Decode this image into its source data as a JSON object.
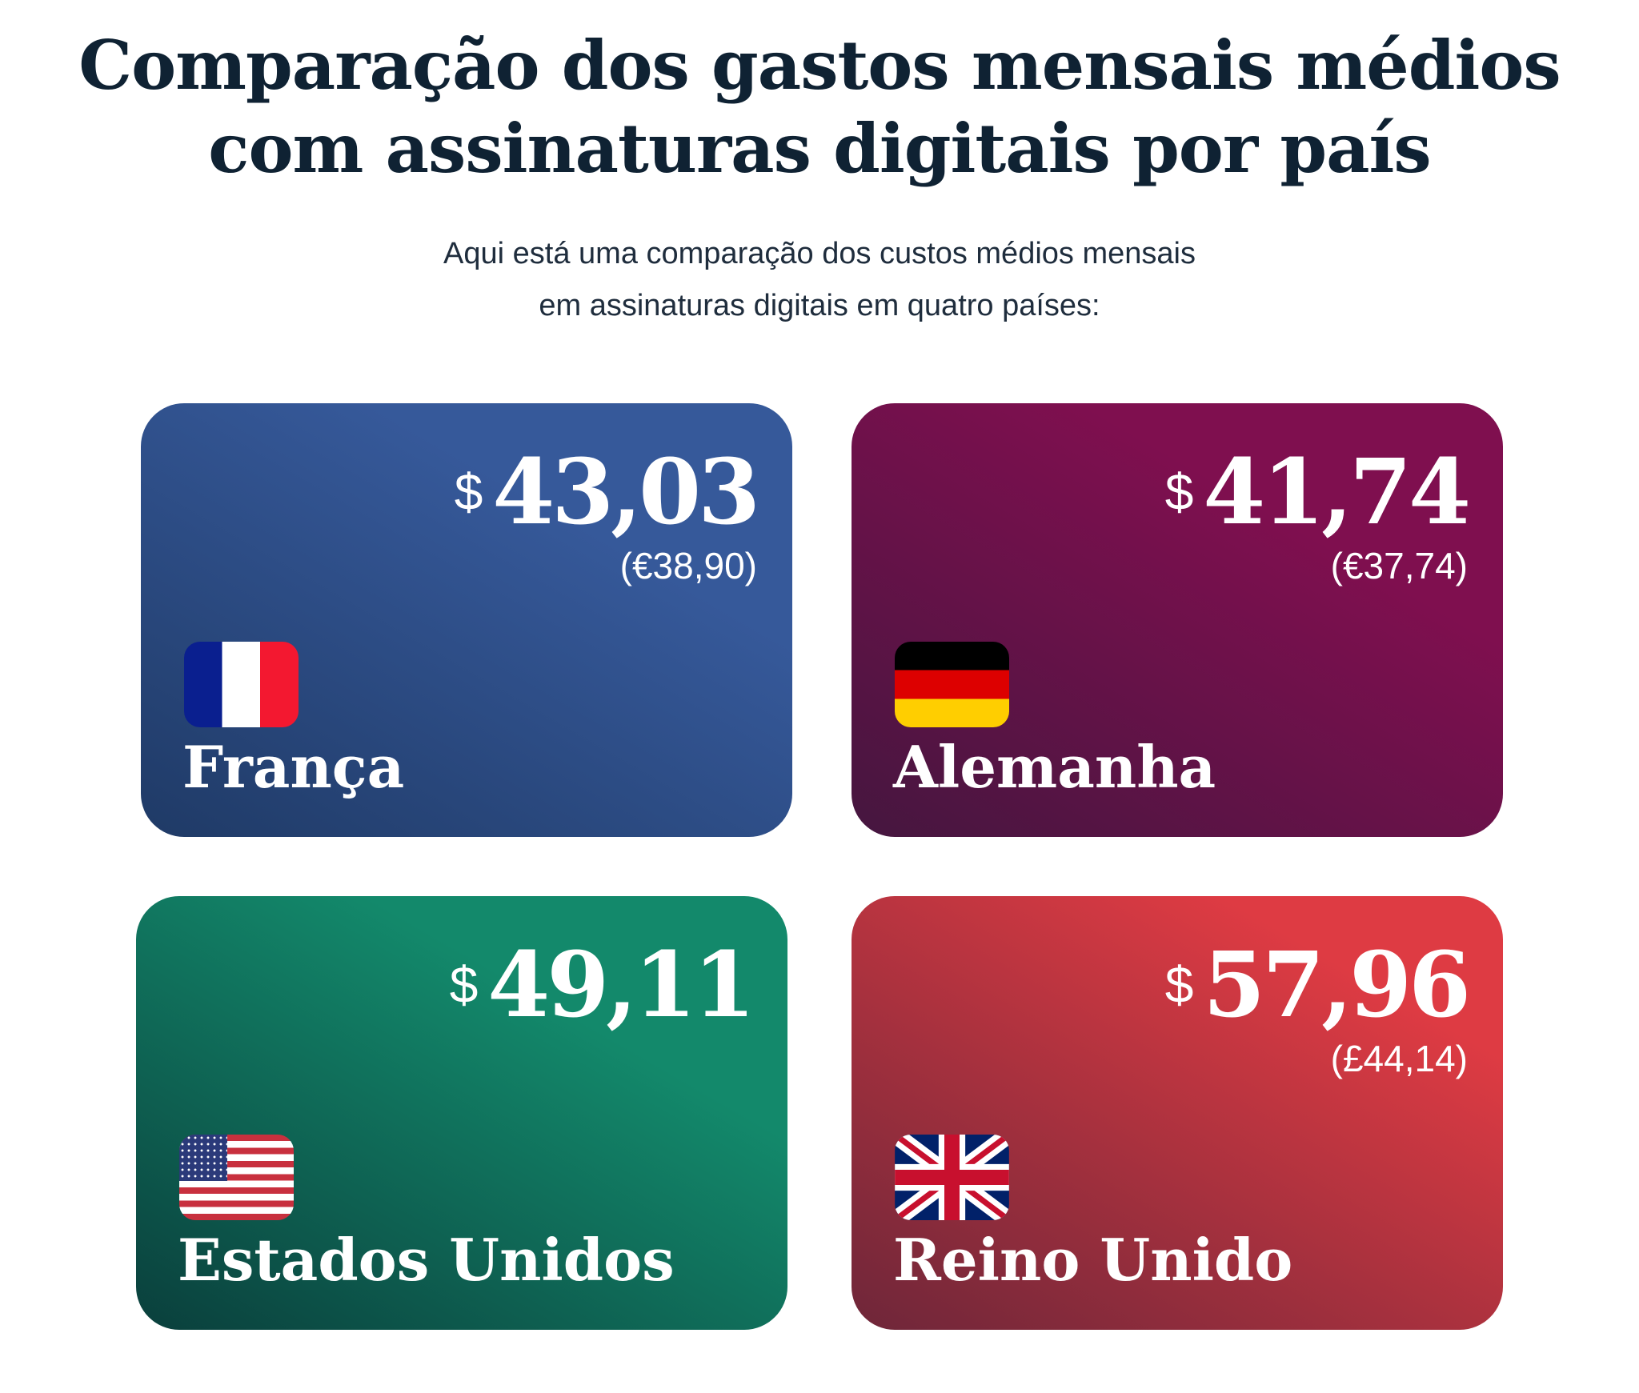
{
  "title_line1": "Comparação dos gastos mensais médios",
  "title_line2": "com assinaturas digitais por país",
  "subtitle_line1": "Aqui está uma comparação dos custos médios mensais",
  "subtitle_line2": "em assinaturas digitais em quatro países:",
  "cards": [
    {
      "country": "França",
      "currency": "$",
      "amount": "43,03",
      "local": "(€38,90)",
      "flag": "france-flag-icon",
      "gradient": [
        "#1f3a66",
        "#36599a"
      ]
    },
    {
      "country": "Alemanha",
      "currency": "$",
      "amount": "41,74",
      "local": "(€37,74)",
      "flag": "germany-flag-icon",
      "gradient": [
        "#45163f",
        "#7f0f4f"
      ]
    },
    {
      "country": "Estados Unidos",
      "currency": "$",
      "amount": "49,11",
      "local": "",
      "flag": "usa-flag-icon",
      "gradient": [
        "#0a3f3c",
        "#13896b"
      ]
    },
    {
      "country": "Reino Unido",
      "currency": "$",
      "amount": "57,96",
      "local": "(£44,14)",
      "flag": "uk-flag-icon",
      "gradient": [
        "#6e2639",
        "#de3b43"
      ]
    }
  ]
}
